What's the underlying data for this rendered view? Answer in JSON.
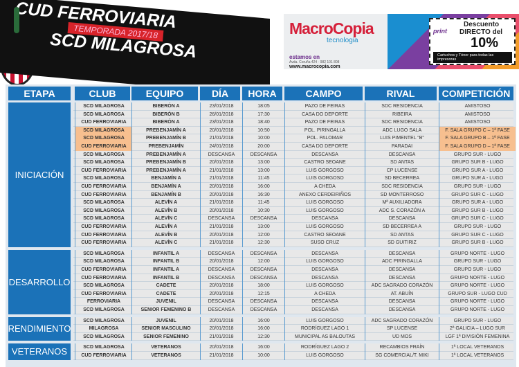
{
  "banner": {
    "line1": "CUD FERROVIARIA",
    "season": "TEMPORADA 2017/18",
    "line2": "SCD MILAGROSA"
  },
  "ad": {
    "brand": "MacroCopia",
    "sub": "tecnologia",
    "estamos": "estamos en",
    "address": "Avda. Coruña 424 · 982 101 808",
    "web": "www.macrocopia.com",
    "coupon_brand": "print",
    "desc1": "Descuento",
    "desc2": "DIRECTO del",
    "pct": "10%",
    "bar": "Cartuchos y Tóner para todas las impresoras"
  },
  "colors": {
    "header": "#1b72b8",
    "highlight": "#f7bf8f",
    "row": "#e8e8e8"
  },
  "headers": [
    "ETAPA",
    "CLUB",
    "EQUIPO",
    "DÍA",
    "HORA",
    "CAMPO",
    "RIVAL",
    "COMPETICIÓN"
  ],
  "groups": [
    {
      "etapa": "INICIACIÓN",
      "rows": [
        [
          "SCD MILAGROSA",
          "BIBERÓN A",
          "23/01/2018",
          "18:05",
          "PAZO DE FEIRAS",
          "SDC RESIDENCIA",
          "AMISTOSO",
          0
        ],
        [
          "SCD MILAGROSA",
          "BIBERÓN B",
          "26/01/2018",
          "17:30",
          "CASA DO DEPORTE",
          "RIBEIRA",
          "AMISTOSO",
          0
        ],
        [
          "CUD FERROVIARIA",
          "BIBERÓN A",
          "23/01/2018",
          "18:40",
          "PAZO DE FEIRAS",
          "SDC RESIDENCIA",
          "AMISTOSO",
          0
        ],
        [
          "SCD MILAGROSA",
          "PREBENJAMÍN A",
          "20/01/2018",
          "10:50",
          "POL. PIRINGALLA",
          "ADC LUGO SALA",
          "F. SALA GRUPO C – 1ª FASE",
          1
        ],
        [
          "SCD MILAGROSA",
          "PREBENJAMÍN B",
          "21/01/2018",
          "10:00",
          "POL. PALOMAR",
          "LUIS PIMENTEL \"B\"",
          "F. SALA GRUPO B – 1ª FASE",
          1
        ],
        [
          "CUD FERROVIARIA",
          "PREBENJAMÍN",
          "24/01/2018",
          "20:00",
          "CASA DO DEPORTE",
          "PARADAI",
          "F. SALA GRUPO D – 1ª FASE",
          1
        ],
        [
          "SCD MILAGROSA",
          "PREBENJAMÍN A",
          "DESCANSA",
          "DESCANSA",
          "DESCANSA",
          "DESCANSA",
          "GRUPO SUR - LUGO",
          0
        ],
        [
          "SCD MILAGROSA",
          "PREBENJAMÍN B",
          "20/01/2018",
          "13:00",
          "CASTRO SEOANE",
          "SD ANTAS",
          "GRUPO SUR B - LUGO",
          0
        ],
        [
          "CUD FERROVIARIA",
          "PREBENJAMÍN A",
          "21/01/2018",
          "13:00",
          "LUIS GORGOSO",
          "CP LUCENSE",
          "GRUPO SUR A - LUGO",
          0
        ],
        [
          "SCD MILAGROSA",
          "BENJAMÍN A",
          "21/01/2018",
          "11:45",
          "LUIS GORGOSO",
          "SD BECERREA",
          "GRUPO SUR A - LUGO",
          0
        ],
        [
          "CUD FERROVIARIA",
          "BENJAMÍN A",
          "20/01/2018",
          "16:00",
          "A CHEDA",
          "SDC RESIDENCIA",
          "GRUPO SUR - LUGO",
          0
        ],
        [
          "CUD FERROVIARIA",
          "BENJAMÍN B",
          "20/01/2018",
          "16:30",
          "ANEXO CERDEIRIÑOS",
          "SD MONTERROSO",
          "GRUPO SUR C - LUGO",
          0
        ],
        [
          "SCD MILAGROSA",
          "ALEVÍN A",
          "21/01/2018",
          "11:45",
          "LUIS GORGOSO",
          "Mª AUXILIADORA",
          "GRUPO SUR A - LUGO",
          0
        ],
        [
          "SCD MILAGROSA",
          "ALEVÍN B",
          "20/01/2018",
          "10:30",
          "LUIS GORGOSO",
          "ADC S. CORAZÓN A",
          "GRUPO SUR B - LUGO",
          0
        ],
        [
          "SCD MILAGROSA",
          "ALEVÍN C",
          "DESCANSA",
          "DESCANSA",
          "DESCANSA",
          "DESCANSA",
          "GRUPO SUR C - LUGO",
          0
        ],
        [
          "CUD FERROVIARIA",
          "ALEVÍN A",
          "21/01/2018",
          "13:00",
          "LUIS GORGOSO",
          "SD BECERREA A",
          "GRUPO SUR - LUGO",
          0
        ],
        [
          "CUD FERROVIARIA",
          "ALEVÍN B",
          "20/01/2018",
          "12:00",
          "CASTRO SEOANE",
          "SD ANTAS",
          "GRUPO SUR C - LUGO",
          0
        ],
        [
          "CUD FERROVIARIA",
          "ALEVÍN C",
          "21/01/2018",
          "12:30",
          "SUSO CRUZ",
          "SD GUITIRIZ",
          "GRUPO SUR B - LUGO",
          0
        ]
      ]
    },
    {
      "etapa": "DESARROLLO",
      "rows": [
        [
          "SCD MILAGROSA",
          "INFANTIL A",
          "DESCANSA",
          "DESCANSA",
          "DESCANSA",
          "DESCANSA",
          "GRUPO NORTE - LUGO",
          0
        ],
        [
          "SCD MILAGROSA",
          "INFANTIL B",
          "20/01/2018",
          "12:00",
          "LUIS GORGOSO",
          "ADC PIRINGALLA",
          "GRUPO SUR - LUGO",
          0
        ],
        [
          "CUD FERROVIARIA",
          "INFANTIL A",
          "DESCANSA",
          "DESCANSA",
          "DESCANSA",
          "DESCANSA",
          "GRUPO SUR - LUGO",
          0
        ],
        [
          "CUD FERROVIARIA",
          "INFANTIL B",
          "DESCANSA",
          "DESCANSA",
          "DESCANSA",
          "DESCANSA",
          "GRUPO NORTE - LUGO",
          0
        ],
        [
          "SCD MILAGROSA",
          "CADETE",
          "20/01/2018",
          "18:00",
          "LUIS GORGOSO",
          "ADC SAGRADO CORAZÓN",
          "GRUPO NORTE - LUGO",
          0
        ],
        [
          "CUD FERROVIARIA",
          "CADETE",
          "20/01/2018",
          "12:15",
          "A CHEDA",
          "AT. ABUÍN",
          "GRUPO SUR - LUGO CUD",
          0
        ],
        [
          "FERROVIARIA",
          "JUVENIL",
          "DESCANSA",
          "DESCANSA",
          "DESCANSA",
          "DESCANSA",
          "GRUPO NORTE - LUGO",
          0
        ],
        [
          "SCD MILAGROSA",
          "SENIOR FEMENINO B",
          "DESCANSA",
          "DESCANSA",
          "DESCANSA",
          "DESCANSA",
          "GRUPO NORTE - LUGO",
          0
        ]
      ]
    },
    {
      "etapa": "RENDIMIENTO",
      "rows": [
        [
          "SCD MILAGROSA",
          "JUVENIL",
          "20/01/2018",
          "16:00",
          "LUIS GORGOSO",
          "ADC SAGRADO CORAZÓN",
          "GRUPO SUR - LUGO",
          0
        ],
        [
          "MILAGROSA",
          "SENIOR MASCULINO",
          "20/01/2018",
          "16:00",
          "RODRÍGUEZ LAGO 1",
          "SP LUCENSE",
          "2ª GALICIA – LUGO SUR",
          0
        ],
        [
          "SCD MILAGROSA",
          "SENIOR FEMENINO",
          "21/01/2018",
          "12:30",
          "MUNICIPAL AS BALOUTAS",
          "UD MOS",
          "LGF 1ª DIVISIÓN FEMENINA",
          0
        ]
      ]
    },
    {
      "etapa": "VETERANOS",
      "rows": [
        [
          "SCD MILAGROSA",
          "VETERANOS",
          "20/01/2018",
          "16:00",
          "RODRÍGUEZ LAGO 2",
          "RECAMBIOS FRAÍN",
          "1ª LOCAL VETERANOS",
          0
        ],
        [
          "CUD FERROVIARIA",
          "VETERANOS",
          "21/01/2018",
          "10:00",
          "LUIS GORGOSO",
          "SG COMERCIAL/T. MIKI",
          "1ª LOCAL VETERANOS",
          0
        ]
      ]
    }
  ]
}
